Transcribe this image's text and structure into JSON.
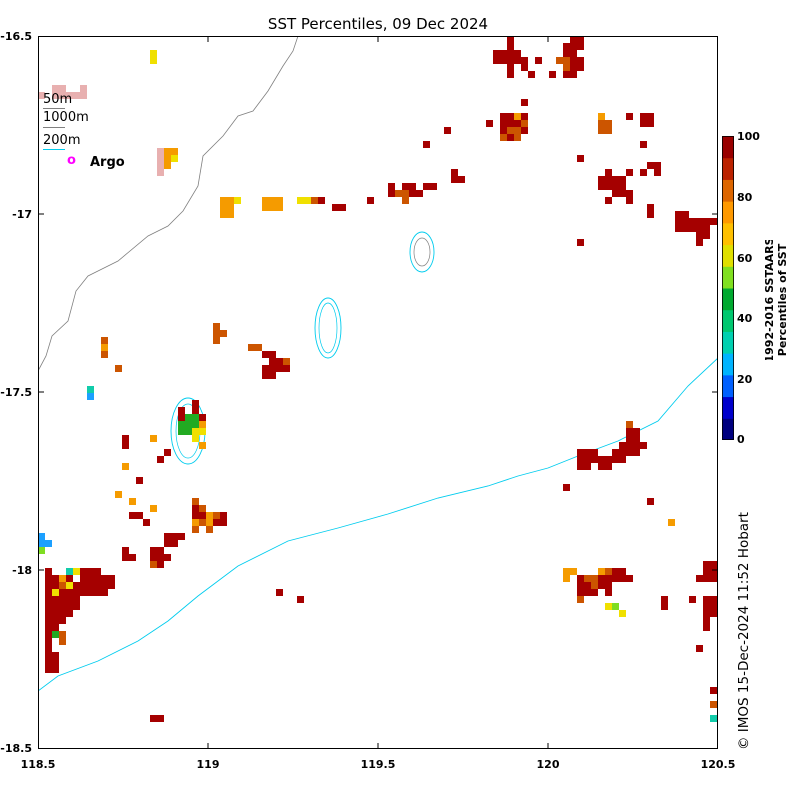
{
  "title": "SST Percentiles, 09 Dec 2024",
  "axes": {
    "x_ticks": [
      "118.5",
      "119",
      "119.5",
      "120",
      "120.5"
    ],
    "y_ticks": [
      "-16.5",
      "-17",
      "-17.5",
      "-18",
      "-18.5"
    ],
    "x_range": [
      118.5,
      120.5
    ],
    "y_range": [
      -18.5,
      -16.5
    ]
  },
  "legend": {
    "items": [
      {
        "label": "50m",
        "color": "#808080"
      },
      {
        "label": "1000m",
        "color": "#808080"
      },
      {
        "label": "200m",
        "color": "#00ccee"
      }
    ],
    "argo": {
      "symbol": "o",
      "label": "Argo",
      "color": "#ff00ff"
    }
  },
  "colorbar": {
    "title_line1": "1992-2016 SSTAARS",
    "title_line2": "Percentiles of SST",
    "ticks": [
      "100",
      "80",
      "60",
      "40",
      "20",
      "0"
    ],
    "colors": [
      "#00007f",
      "#0000cc",
      "#0060ff",
      "#00b4ff",
      "#00d0b0",
      "#00c870",
      "#00aa30",
      "#80e020",
      "#e0e000",
      "#ffc000",
      "#ff9900",
      "#dd6600",
      "#bb2200",
      "#990000"
    ]
  },
  "credit": "© IMOS 15-Dec-2024 11:52 Hobart",
  "colors": {
    "dark_red": "#a50000",
    "orange": "#cc5500",
    "amber": "#f59b00",
    "yellow": "#f0e000",
    "green": "#22aa22",
    "lime": "#7fdd22",
    "teal": "#11ccaa",
    "blue": "#1ca0ff",
    "pink": "#e8b0b0",
    "bathy_grey": "#808080",
    "bathy_cyan": "#00ccee"
  }
}
